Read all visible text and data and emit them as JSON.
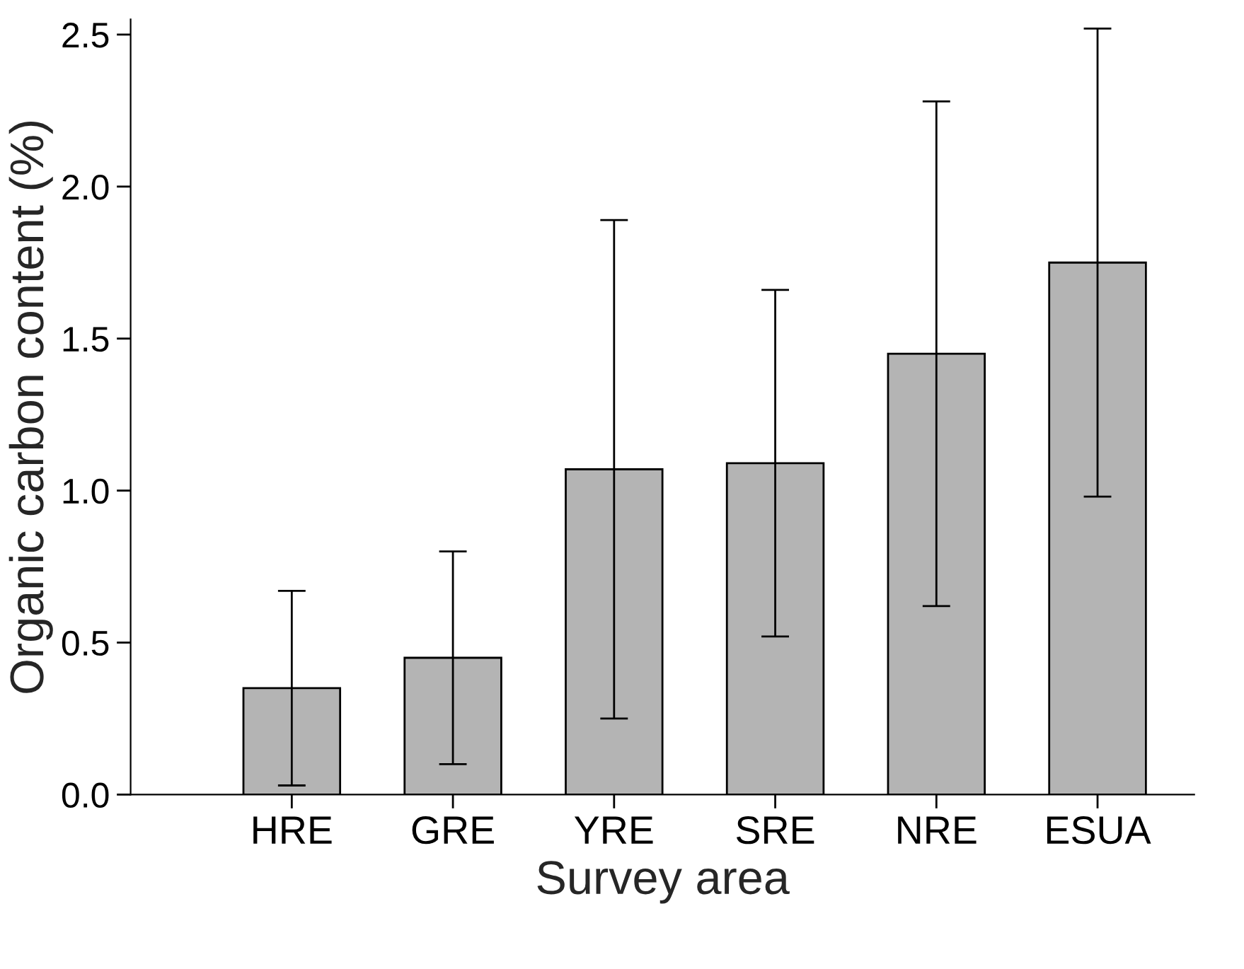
{
  "chart_data": {
    "type": "bar",
    "xlabel": "Survey area",
    "ylabel": "Organic carbon content (%)",
    "categories": [
      "HRE",
      "GRE",
      "YRE",
      "SRE",
      "NRE",
      "ESUA"
    ],
    "values": [
      0.35,
      0.45,
      1.07,
      1.09,
      1.45,
      1.75
    ],
    "errors": [
      [
        0.03,
        0.67
      ],
      [
        0.1,
        0.8
      ],
      [
        0.25,
        1.89
      ],
      [
        0.52,
        1.66
      ],
      [
        0.62,
        2.28
      ],
      [
        0.98,
        2.52
      ]
    ],
    "color": "#b4b4b4",
    "ylim": [
      0,
      2.55
    ],
    "yticks": [
      {
        "value": 0,
        "label": "0.0"
      },
      0.5,
      {
        "value": 1,
        "label": "1.0"
      },
      1.5,
      {
        "value": 2,
        "label": "2.0"
      },
      2.5
    ],
    "grid": false,
    "legend": false
  }
}
